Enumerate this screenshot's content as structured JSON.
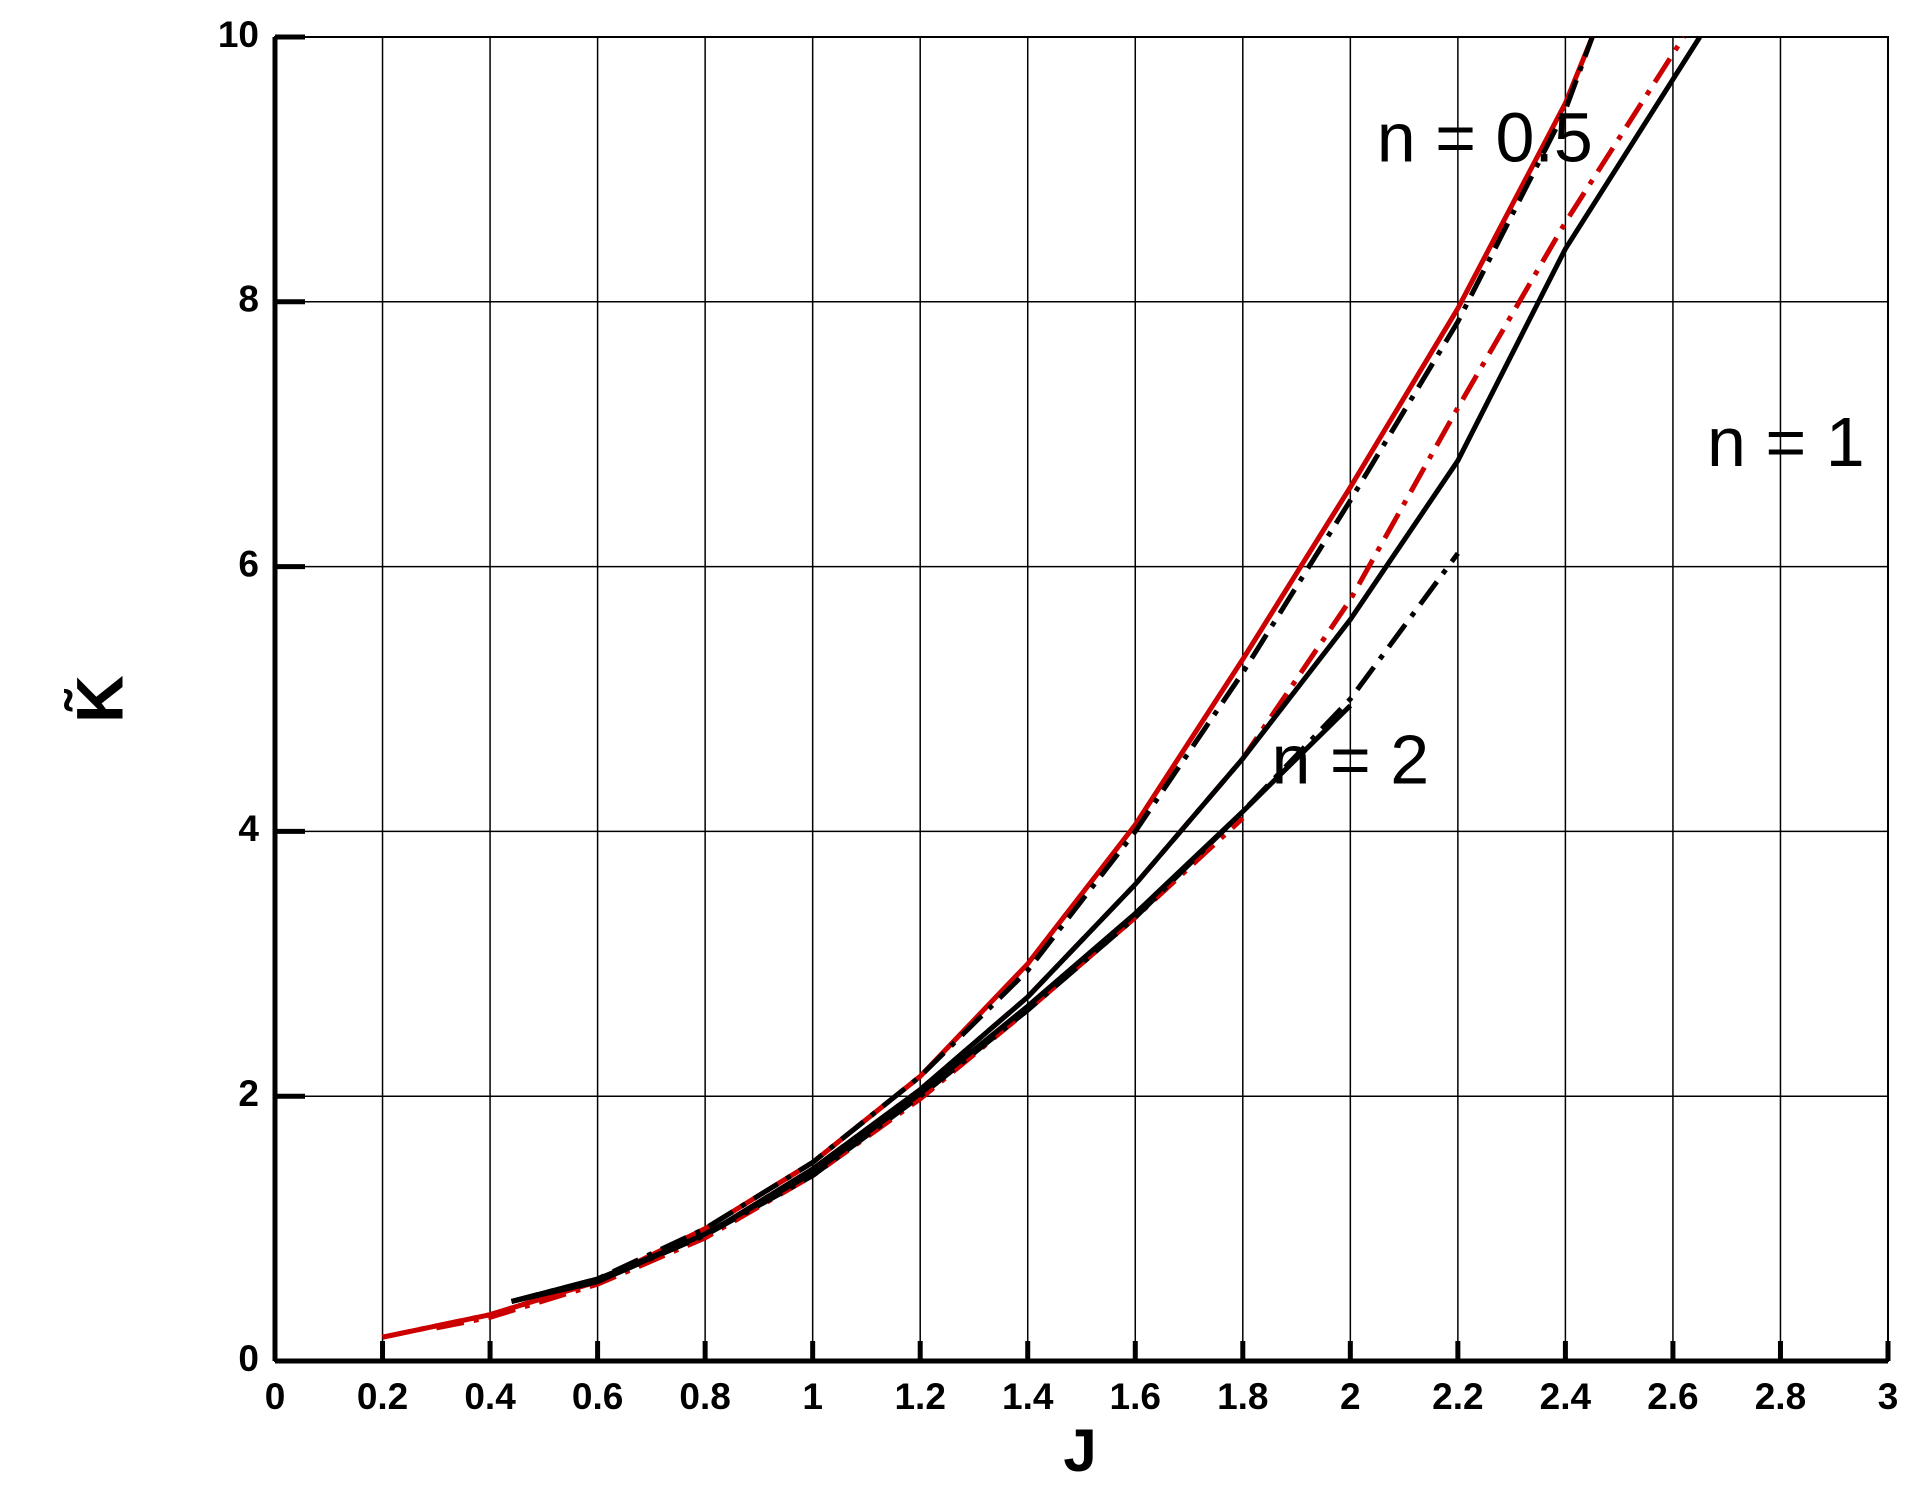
{
  "chart_data": {
    "type": "line",
    "xlabel": "J",
    "ylabel": "K̃",
    "xlim": [
      0,
      3
    ],
    "ylim": [
      0,
      10
    ],
    "xticks": [
      0,
      0.2,
      0.4,
      0.6,
      0.8,
      1,
      1.2,
      1.4,
      1.6,
      1.8,
      2,
      2.2,
      2.4,
      2.6,
      2.8,
      3
    ],
    "yticks": [
      0,
      2,
      4,
      6,
      8,
      10
    ],
    "grid": true,
    "annotations": [
      {
        "text": "n = 0.5",
        "x": 2.25,
        "y": 9.2
      },
      {
        "text": "n = 1",
        "x": 2.81,
        "y": 6.9
      },
      {
        "text": "n = 2",
        "x": 2.0,
        "y": 4.5
      }
    ],
    "series": [
      {
        "color": "#cc0000",
        "dash": "solid",
        "x": [
          0.2,
          0.4,
          0.6,
          0.8,
          1.0,
          1.2,
          1.4,
          1.6,
          1.8,
          2.0,
          2.2,
          2.4,
          2.45
        ],
        "values": [
          0.18,
          0.35,
          0.6,
          1.0,
          1.5,
          2.15,
          3.0,
          4.05,
          5.3,
          6.6,
          7.95,
          9.5,
          10
        ]
      },
      {
        "color": "#000000",
        "dash": "dashdot",
        "x": [
          0.44,
          0.6,
          0.8,
          1.0,
          1.2,
          1.4,
          1.6,
          1.8,
          2.0,
          2.2,
          2.4,
          2.45
        ],
        "values": [
          0.45,
          0.62,
          1.0,
          1.5,
          2.15,
          2.95,
          4.0,
          5.2,
          6.5,
          7.85,
          9.45,
          10
        ]
      },
      {
        "color": "#cc0000",
        "dash": "dashdot",
        "x": [
          0.2,
          0.4,
          0.6,
          0.8,
          1.0,
          1.2,
          1.4,
          1.6,
          1.8,
          2.0,
          2.2,
          2.4,
          2.62
        ],
        "values": [
          0.18,
          0.35,
          0.6,
          0.95,
          1.45,
          2.05,
          2.75,
          3.6,
          4.55,
          5.75,
          7.2,
          8.6,
          10
        ]
      },
      {
        "color": "#000000",
        "dash": "solid",
        "x": [
          0.44,
          0.6,
          0.8,
          1.0,
          1.2,
          1.4,
          1.6,
          1.8,
          2.0,
          2.2,
          2.4,
          2.65
        ],
        "values": [
          0.45,
          0.62,
          0.95,
          1.45,
          2.05,
          2.75,
          3.6,
          4.55,
          5.6,
          6.8,
          8.4,
          10
        ]
      },
      {
        "color": "#cc0000",
        "dash": "dashdot",
        "x": [
          0.3,
          0.4,
          0.6,
          0.8,
          1.0,
          1.2,
          1.4,
          1.6,
          1.8
        ],
        "values": [
          0.25,
          0.33,
          0.58,
          0.93,
          1.4,
          1.98,
          2.65,
          3.35,
          4.1
        ]
      },
      {
        "color": "#000000",
        "dash": "dashdot",
        "x": [
          0.44,
          0.6,
          0.8,
          1.0,
          1.2,
          1.4,
          1.6,
          1.8,
          2.0,
          2.2
        ],
        "values": [
          0.45,
          0.6,
          0.95,
          1.4,
          2.0,
          2.65,
          3.35,
          4.15,
          5.0,
          6.1
        ]
      },
      {
        "color": "#000000",
        "dash": "solid",
        "x": [
          0.44,
          0.6,
          0.8,
          1.0,
          1.2,
          1.4,
          1.6,
          1.8,
          2.0
        ],
        "values": [
          0.45,
          0.6,
          0.96,
          1.42,
          2.02,
          2.68,
          3.38,
          4.15,
          4.95
        ]
      }
    ]
  }
}
